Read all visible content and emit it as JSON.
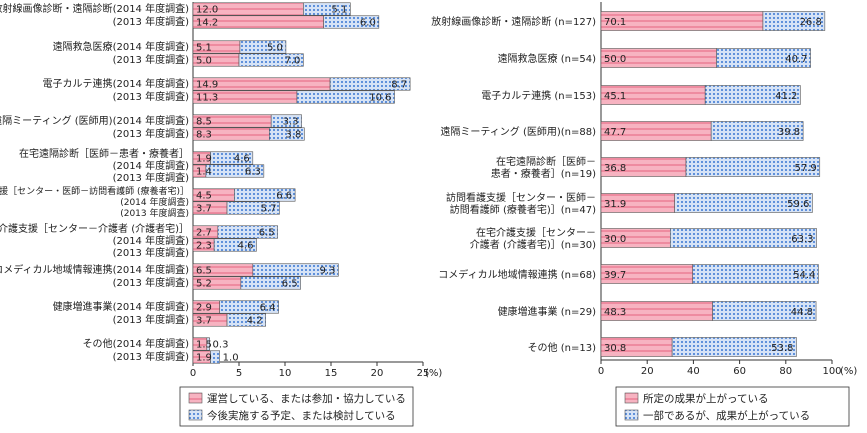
{
  "chart_data": [
    {
      "type": "bar",
      "orientation": "horizontal",
      "stacked": true,
      "unit": "(%)",
      "xlim": [
        0,
        25
      ],
      "ticks": [
        "0",
        "5",
        "10",
        "15",
        "20",
        "25"
      ],
      "groups": [
        {
          "label": "放射線画像診断・遠隔診断",
          "rows": [
            {
              "label": "(2014 年度調査)",
              "values": [
                12.0,
                5.1
              ],
              "labels": [
                "12.0",
                "5.1"
              ]
            },
            {
              "label": "(2013 年度調査)",
              "values": [
                14.2,
                6.0
              ],
              "labels": [
                "14.2",
                "6.0"
              ]
            }
          ]
        },
        {
          "label": "遠隔救急医療",
          "rows": [
            {
              "label": "(2014 年度調査)",
              "values": [
                5.1,
                5.0
              ],
              "labels": [
                "5.1",
                "5.0"
              ]
            },
            {
              "label": "(2013 年度調査)",
              "values": [
                5.0,
                7.0
              ],
              "labels": [
                "5.0",
                "7.0"
              ]
            }
          ]
        },
        {
          "label": "電子カルテ連携",
          "rows": [
            {
              "label": "(2014 年度調査)",
              "values": [
                14.9,
                8.7
              ],
              "labels": [
                "14.9",
                "8.7"
              ]
            },
            {
              "label": "(2013 年度調査)",
              "values": [
                11.3,
                10.6
              ],
              "labels": [
                "11.3",
                "10.6"
              ]
            }
          ]
        },
        {
          "label": "遠隔ミーティング (医師用)",
          "rows": [
            {
              "label": "(2014 年度調査)",
              "values": [
                8.5,
                3.3
              ],
              "labels": [
                "8.5",
                "3.3"
              ]
            },
            {
              "label": "(2013 年度調査)",
              "values": [
                8.3,
                3.8
              ],
              "labels": [
                "8.3",
                "3.8"
              ]
            }
          ]
        },
        {
          "label": "在宅遠隔診断［医師－患者・療養者］",
          "rows": [
            {
              "label": "(2014 年度調査)",
              "values": [
                1.9,
                4.6
              ],
              "labels": [
                "1.9",
                "4.6"
              ]
            },
            {
              "label": "(2013 年度調査)",
              "values": [
                1.4,
                6.3
              ],
              "labels": [
                "1.4",
                "6.3"
              ]
            }
          ]
        },
        {
          "label": "訪問看護支援［センター・医師－訪問看護師 (療養者宅)］",
          "rows": [
            {
              "label": "(2014 年度調査)",
              "values": [
                4.5,
                6.6
              ],
              "labels": [
                "4.5",
                "6.6"
              ]
            },
            {
              "label": "(2013 年度調査)",
              "values": [
                3.7,
                5.7
              ],
              "labels": [
                "3.7",
                "5.7"
              ]
            }
          ]
        },
        {
          "label": "在宅介護支援［センター－介護者 (介護者宅)］",
          "rows": [
            {
              "label": "(2014 年度調査)",
              "values": [
                2.7,
                6.5
              ],
              "labels": [
                "2.7",
                "6.5"
              ]
            },
            {
              "label": "(2013 年度調査)",
              "values": [
                2.3,
                4.6
              ],
              "labels": [
                "2.3",
                "4.6"
              ]
            }
          ]
        },
        {
          "label": "コメディカル地域情報連携",
          "rows": [
            {
              "label": "(2014 年度調査)",
              "values": [
                6.5,
                9.3
              ],
              "labels": [
                "6.5",
                "9.3"
              ]
            },
            {
              "label": "(2013 年度調査)",
              "values": [
                5.2,
                6.5
              ],
              "labels": [
                "5.2",
                "6.5"
              ]
            }
          ]
        },
        {
          "label": "健康増進事業",
          "rows": [
            {
              "label": "(2014 年度調査)",
              "values": [
                2.9,
                6.4
              ],
              "labels": [
                "2.9",
                "6.4"
              ]
            },
            {
              "label": "(2013 年度調査)",
              "values": [
                3.7,
                4.2
              ],
              "labels": [
                "3.7",
                "4.2"
              ]
            }
          ]
        },
        {
          "label": "その他",
          "rows": [
            {
              "label": "(2014 年度調査)",
              "values": [
                1.5,
                0.3
              ],
              "labels": [
                "1.5",
                "0.3"
              ]
            },
            {
              "label": "(2013 年度調査)",
              "values": [
                1.9,
                1.0
              ],
              "labels": [
                "1.9",
                "1.0"
              ]
            }
          ]
        }
      ],
      "legend": [
        "運営している、または参加・協力している",
        "今後実施する予定、または検討している"
      ]
    },
    {
      "type": "bar",
      "orientation": "horizontal",
      "stacked": true,
      "unit": "(%)",
      "xlim": [
        0,
        100
      ],
      "ticks": [
        "0",
        "20",
        "40",
        "60",
        "80",
        "100"
      ],
      "categories": [
        [
          "放射線画像診断・遠隔診断 (n=127)"
        ],
        [
          "遠隔救急医療 (n=54)"
        ],
        [
          "電子カルテ連携 (n=153)"
        ],
        [
          "遠隔ミーティング (医師用)(n=88)"
        ],
        [
          "在宅遠隔診断［医師－",
          "患者・療養者］(n=19)"
        ],
        [
          "訪問看護支援［センター・医師－",
          "訪問看護師 (療養者宅)］(n=47)"
        ],
        [
          "在宅介護支援［センター－",
          "介護者 (介護者宅)］(n=30)"
        ],
        [
          "コメディカル地域情報連携 (n=68)"
        ],
        [
          "健康増進事業 (n=29)"
        ],
        [
          "その他 (n=13)"
        ]
      ],
      "series": [
        {
          "name": "所定の成果が上がっている",
          "values": [
            70.1,
            50.0,
            45.1,
            47.7,
            36.8,
            31.9,
            30.0,
            39.7,
            48.3,
            30.8
          ],
          "labels": [
            "70.1",
            "50.0",
            "45.1",
            "47.7",
            "36.8",
            "31.9",
            "30.0",
            "39.7",
            "48.3",
            "30.8"
          ]
        },
        {
          "name": "一部であるが、成果が上がっている",
          "values": [
            26.8,
            40.7,
            41.2,
            39.8,
            57.9,
            59.6,
            63.3,
            54.4,
            44.8,
            53.8
          ],
          "labels": [
            "26.8",
            "40.7",
            "41.2",
            "39.8",
            "57.9",
            "59.6",
            "63.3",
            "54.4",
            "44.8",
            "53.8"
          ]
        }
      ]
    }
  ],
  "colors": {
    "pink": "#f7a8b8",
    "pink_line": "#e2506e",
    "blue": "#a8c3ea",
    "blue_dot": "#2f6fd0",
    "axis": "#333333"
  }
}
